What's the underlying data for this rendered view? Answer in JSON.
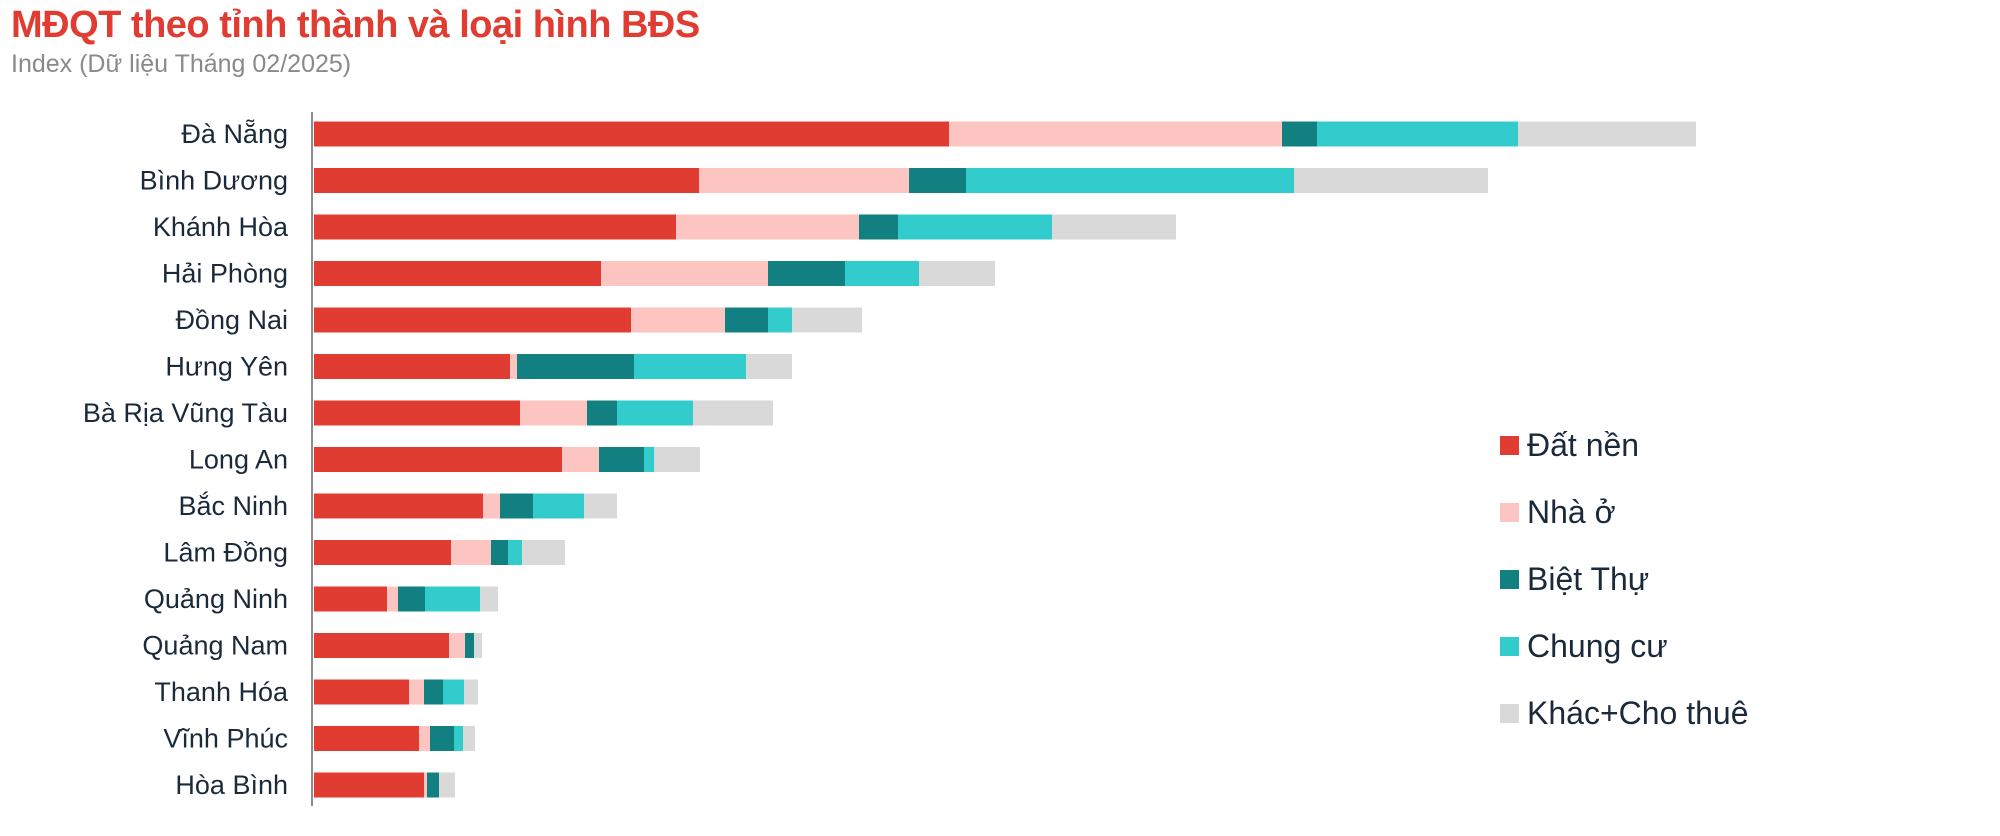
{
  "title": "MĐQT theo tỉnh thành và loại hình BĐS",
  "subtitle": "Index (Dữ liệu Tháng 02/2025)",
  "chart_data": {
    "type": "bar",
    "orientation": "horizontal",
    "stacked": true,
    "title": "MĐQT theo tỉnh thành và loại hình BĐS",
    "subtitle": "Index (Dữ liệu Tháng 02/2025)",
    "categories": [
      "Đà Nẵng",
      "Bình Dương",
      "Khánh Hòa",
      "Hải Phòng",
      "Đồng Nai",
      "Hưng Yên",
      "Bà Rịa Vũng Tàu",
      "Long An",
      "Bắc Ninh",
      "Lâm Đồng",
      "Quảng Ninh",
      "Quảng Nam",
      "Thanh Hóa",
      "Vĩnh Phúc",
      "Hòa Bình"
    ],
    "series": [
      {
        "name": "Đất nền",
        "color": "#e03c31",
        "values": [
          635,
          385,
          362,
          287,
          317,
          196,
          206,
          248,
          169,
          137,
          73,
          135,
          95,
          105,
          110
        ]
      },
      {
        "name": "Nhà ở",
        "color": "#fdc5c2",
        "values": [
          333,
          210,
          183,
          167,
          94,
          7,
          67,
          37,
          17,
          40,
          11,
          16,
          15,
          11,
          3
        ]
      },
      {
        "name": "Biệt Thự",
        "color": "#127f80",
        "values": [
          35,
          57,
          39,
          77,
          43,
          117,
          30,
          45,
          33,
          17,
          27,
          9,
          19,
          24,
          12
        ]
      },
      {
        "name": "Chung cư",
        "color": "#33cccc",
        "values": [
          201,
          328,
          154,
          74,
          24,
          112,
          76,
          10,
          51,
          14,
          55,
          0,
          21,
          9,
          0
        ]
      },
      {
        "name": "Khác+Cho thuê",
        "color": "#d9d9d9",
        "values": [
          178,
          194,
          124,
          76,
          70,
          46,
          80,
          46,
          33,
          43,
          18,
          8,
          14,
          12,
          16
        ]
      }
    ],
    "xlim": [
      0,
      1400
    ],
    "grid": false,
    "legend_position": "right"
  }
}
